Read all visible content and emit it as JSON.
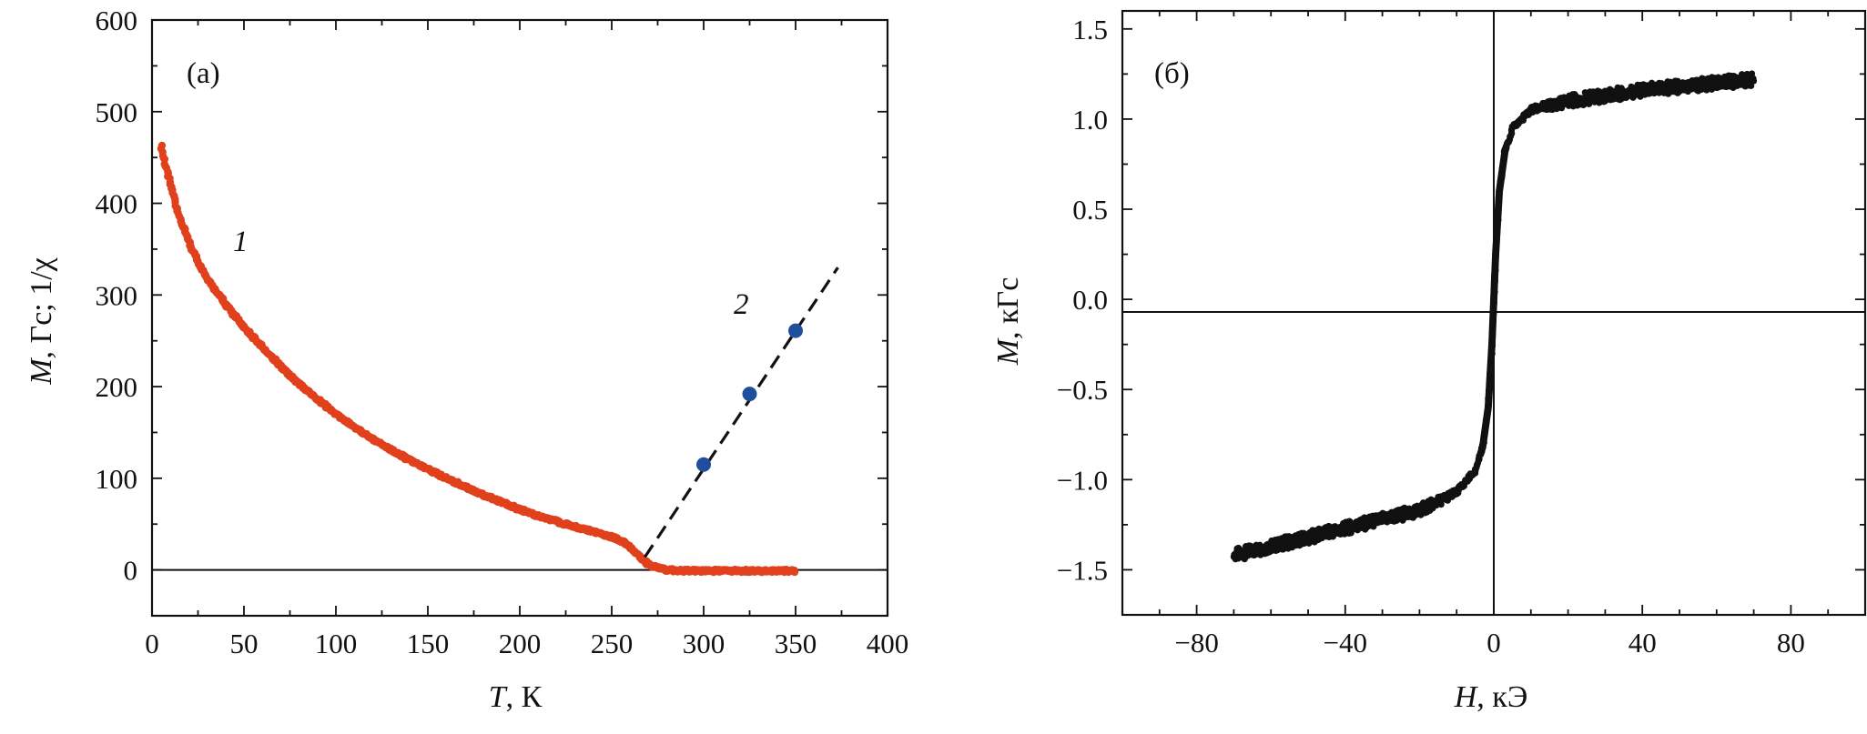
{
  "chart_data": [
    {
      "type": "scatter",
      "panel_label": "(а)",
      "xlabel": {
        "symbol": "T",
        "unit": ", К"
      },
      "ylabel": {
        "symbol": "M",
        "unit": ", Гс; 1/χ"
      },
      "xlim": [
        0,
        400
      ],
      "ylim": [
        -50,
        600
      ],
      "xticks": [
        0,
        50,
        100,
        150,
        200,
        250,
        300,
        350,
        400
      ],
      "yticks": [
        0,
        100,
        200,
        300,
        400,
        500,
        600
      ],
      "zero_line": "horizontal",
      "grid": false,
      "series": [
        {
          "label": "1",
          "color": "#e0401c",
          "marker": "dense-points",
          "x": [
            5,
            10,
            15,
            20,
            25,
            30,
            40,
            50,
            60,
            70,
            80,
            90,
            100,
            110,
            120,
            130,
            140,
            150,
            160,
            170,
            180,
            190,
            200,
            210,
            220,
            230,
            240,
            250,
            255,
            260,
            265,
            270,
            275,
            280,
            290,
            300,
            310,
            320,
            330,
            340,
            350
          ],
          "y": [
            462,
            420,
            385,
            358,
            336,
            318,
            290,
            265,
            243,
            222,
            203,
            186,
            170,
            156,
            143,
            131,
            120,
            110,
            100,
            91,
            82,
            74,
            66,
            59,
            53,
            47,
            42,
            36,
            32,
            25,
            15,
            6,
            2,
            0,
            -1,
            -1,
            -1,
            -1,
            -1,
            -1,
            -1
          ]
        },
        {
          "label": "2",
          "color": "#1f4e9c",
          "marker": "circle",
          "x": [
            300,
            325,
            350
          ],
          "y": [
            115,
            192,
            261
          ]
        },
        {
          "label": "2",
          "color": "#111111",
          "line_style": "dashed",
          "x": [
            268,
            373
          ],
          "y": [
            14,
            330
          ]
        }
      ]
    },
    {
      "type": "scatter",
      "panel_label": "(б)",
      "xlabel": {
        "symbol": "H",
        "unit": ", кЭ"
      },
      "ylabel": {
        "symbol": "M",
        "unit": ", кГс"
      },
      "xlim": [
        -100,
        100
      ],
      "ylim": [
        -1.75,
        1.6
      ],
      "xticks": [
        -80,
        -40,
        0,
        40,
        80
      ],
      "xtick_labels": [
        "−80",
        "−40",
        "0",
        "40",
        "80"
      ],
      "yticks": [
        -1.5,
        -1.0,
        -0.5,
        0.0,
        0.5,
        1.0,
        1.5
      ],
      "ytick_labels": [
        "−1.5",
        "−1.0",
        "−0.5",
        "0.0",
        "0.5",
        "1.0",
        "1.5"
      ],
      "zero_line": "both",
      "grid": false,
      "series": [
        {
          "color": "#111111",
          "marker": "dense-points",
          "x": [
            -70,
            -60,
            -50,
            -40,
            -30,
            -20,
            -10,
            -5,
            -3,
            -1.5,
            -0.5,
            0,
            0.5,
            1.5,
            3,
            5,
            10,
            20,
            30,
            40,
            50,
            60,
            70
          ],
          "y": [
            -1.42,
            -1.37,
            -1.32,
            -1.27,
            -1.22,
            -1.17,
            -1.07,
            -0.95,
            -0.82,
            -0.6,
            -0.25,
            0.0,
            0.25,
            0.6,
            0.82,
            0.95,
            1.05,
            1.1,
            1.13,
            1.16,
            1.18,
            1.2,
            1.22
          ]
        }
      ]
    }
  ]
}
